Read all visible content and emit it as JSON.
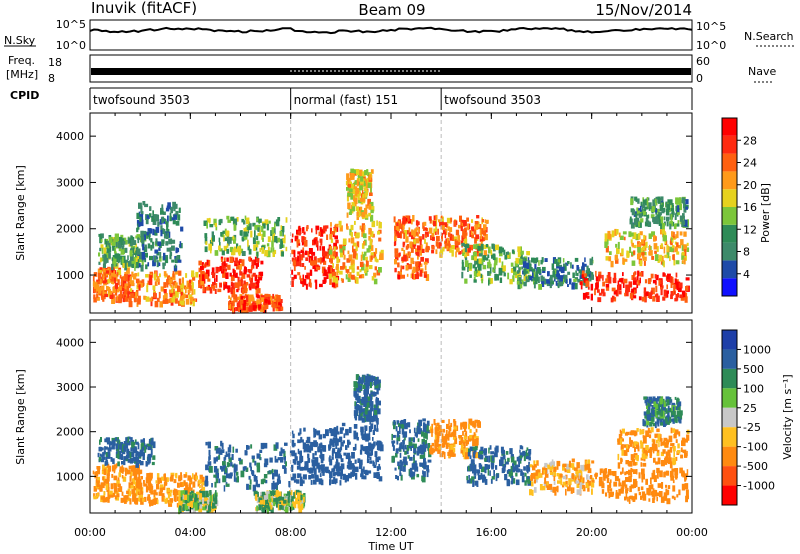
{
  "header": {
    "station": "Inuvik (fitACF)",
    "beam": "Beam 09",
    "date": "15/Nov/2014"
  },
  "strips": {
    "nsky_label": "N.Sky",
    "nsearch_label": "N.Search",
    "nsky_ticks": [
      "10^5",
      "10^0"
    ],
    "nsearch_ticks": [
      "10^5",
      "10^0"
    ],
    "freq_label_1": "Freq.",
    "freq_label_2": "[MHz]",
    "freq_ticks": [
      "18",
      "8"
    ],
    "nave_label": "Nave",
    "nave_ticks": [
      "60",
      "0"
    ],
    "cpid_label": "CPID",
    "cpid_segments": [
      {
        "label": "twofsound 3503",
        "start_hour": 0,
        "end_hour": 8
      },
      {
        "label": "normal (fast) 151",
        "start_hour": 8,
        "end_hour": 14
      },
      {
        "label": "twofsound 3503",
        "start_hour": 14,
        "end_hour": 24
      }
    ]
  },
  "axes": {
    "ylabel": "Slant Range [km]",
    "xlabel": "Time UT",
    "x_ticks": [
      "00:00",
      "04:00",
      "08:00",
      "12:00",
      "16:00",
      "20:00",
      "00:00"
    ],
    "y_ticks": [
      "1000",
      "2000",
      "3000",
      "4000"
    ]
  },
  "power_scale": {
    "title": "Power [dB]",
    "labels": [
      "4",
      "8",
      "12",
      "16",
      "20",
      "24",
      "28"
    ],
    "colors": [
      "#1010ff",
      "#1e4aa8",
      "#3d8a6a",
      "#2e8b57",
      "#7cc63a",
      "#e6d21e",
      "#ff9a1a",
      "#ff6010",
      "#ff2a10",
      "#ff0000"
    ]
  },
  "velocity_scale": {
    "title": "Velocity [m s⁻¹]",
    "labels": [
      "1000",
      "500",
      "100",
      "25",
      "-25",
      "-100",
      "-500",
      "-1000"
    ],
    "colors": [
      "#1e3fa8",
      "#2a5fa0",
      "#2e8b57",
      "#66c23a",
      "#c8c8c8",
      "#ffc020",
      "#ff8a10",
      "#ff5010",
      "#ff0000"
    ]
  },
  "chart_data": [
    {
      "type": "heatmap",
      "name": "Power",
      "xlabel": "Time UT",
      "ylabel": "Slant Range [km]",
      "xlim": [
        0,
        24
      ],
      "ylim": [
        180,
        4500
      ],
      "colorbar": {
        "title": "Power [dB]",
        "range": [
          0,
          32
        ]
      },
      "patches": [
        {
          "t": [
            0.1,
            1.5
          ],
          "r": [
            500,
            1200
          ],
          "v": 24
        },
        {
          "t": [
            0.3,
            2.2
          ],
          "r": [
            1200,
            1900
          ],
          "v": 12
        },
        {
          "t": [
            1.5,
            4.2
          ],
          "r": [
            400,
            1100
          ],
          "v": 22
        },
        {
          "t": [
            1.8,
            3.6
          ],
          "r": [
            1200,
            2600
          ],
          "v": 8
        },
        {
          "t": [
            4.3,
            6.8
          ],
          "r": [
            700,
            1400
          ],
          "v": 27
        },
        {
          "t": [
            4.5,
            7.8
          ],
          "r": [
            1500,
            2300
          ],
          "v": 14
        },
        {
          "t": [
            5.5,
            7.6
          ],
          "r": [
            300,
            600
          ],
          "v": 25
        },
        {
          "t": [
            8.0,
            9.8
          ],
          "r": [
            800,
            2100
          ],
          "v": 28
        },
        {
          "t": [
            9.5,
            11.6
          ],
          "r": [
            900,
            2200
          ],
          "v": 20
        },
        {
          "t": [
            10.2,
            11.2
          ],
          "r": [
            2300,
            3300
          ],
          "v": 18
        },
        {
          "t": [
            12.1,
            13.4
          ],
          "r": [
            1000,
            2300
          ],
          "v": 24
        },
        {
          "t": [
            13.5,
            15.8
          ],
          "r": [
            1500,
            2300
          ],
          "v": 23
        },
        {
          "t": [
            14.8,
            17.5
          ],
          "r": [
            900,
            1700
          ],
          "v": 13
        },
        {
          "t": [
            17.0,
            20.0
          ],
          "r": [
            800,
            1400
          ],
          "v": 9
        },
        {
          "t": [
            19.5,
            23.8
          ],
          "r": [
            500,
            1100
          ],
          "v": 28
        },
        {
          "t": [
            20.5,
            23.8
          ],
          "r": [
            1300,
            2000
          ],
          "v": 19
        },
        {
          "t": [
            21.5,
            23.8
          ],
          "r": [
            2100,
            2700
          ],
          "v": 11
        }
      ]
    },
    {
      "type": "heatmap",
      "name": "Velocity",
      "xlabel": "Time UT",
      "ylabel": "Slant Range [km]",
      "xlim": [
        0,
        24
      ],
      "ylim": [
        180,
        4500
      ],
      "colorbar": {
        "title": "Velocity [m s⁻¹]",
        "range": [
          -1000,
          1000
        ]
      },
      "patches": [
        {
          "t": [
            0.1,
            2.0
          ],
          "r": [
            500,
            1300
          ],
          "v": -150
        },
        {
          "t": [
            0.3,
            2.5
          ],
          "r": [
            1300,
            1900
          ],
          "v": 150
        },
        {
          "t": [
            2.0,
            4.5
          ],
          "r": [
            400,
            1100
          ],
          "v": -150
        },
        {
          "t": [
            3.5,
            5.0
          ],
          "r": [
            300,
            700
          ],
          "v": 0
        },
        {
          "t": [
            4.5,
            8.0
          ],
          "r": [
            800,
            1800
          ],
          "v": 150
        },
        {
          "t": [
            6.5,
            8.5
          ],
          "r": [
            300,
            700
          ],
          "v": 0
        },
        {
          "t": [
            8.0,
            10.0
          ],
          "r": [
            900,
            2100
          ],
          "v": 300
        },
        {
          "t": [
            9.5,
            11.6
          ],
          "r": [
            1000,
            2200
          ],
          "v": 200
        },
        {
          "t": [
            10.5,
            11.5
          ],
          "r": [
            2300,
            3300
          ],
          "v": 150
        },
        {
          "t": [
            12.0,
            13.5
          ],
          "r": [
            1000,
            2300
          ],
          "v": 150
        },
        {
          "t": [
            13.5,
            15.5
          ],
          "r": [
            1500,
            2300
          ],
          "v": -150
        },
        {
          "t": [
            15.0,
            17.5
          ],
          "r": [
            900,
            1700
          ],
          "v": 150
        },
        {
          "t": [
            17.5,
            20.0
          ],
          "r": [
            700,
            1400
          ],
          "v": -100
        },
        {
          "t": [
            20.0,
            23.8
          ],
          "r": [
            500,
            1200
          ],
          "v": -300
        },
        {
          "t": [
            21.0,
            23.8
          ],
          "r": [
            1300,
            2100
          ],
          "v": -150
        },
        {
          "t": [
            22.0,
            23.5
          ],
          "r": [
            2200,
            2800
          ],
          "v": 100
        }
      ]
    }
  ]
}
